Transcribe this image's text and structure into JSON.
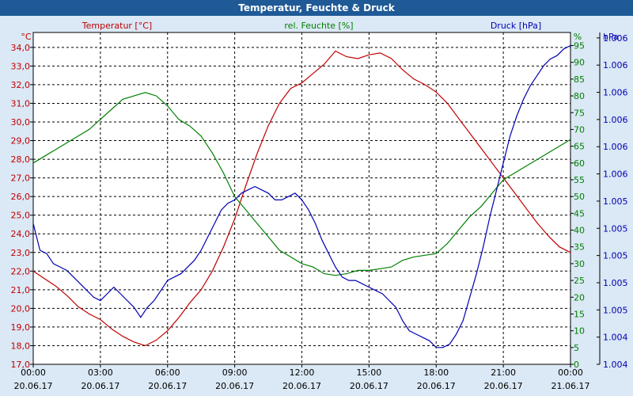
{
  "window": {
    "title": "Temperatur, Feuchte & Druck"
  },
  "colors": {
    "temperature": "#c00000",
    "humidity": "#008000",
    "pressure": "#0000b4",
    "background": "#dbe8f5",
    "plot_background": "#ffffff",
    "titlebar": "#1f5a96"
  },
  "chart_data": {
    "type": "line",
    "title": "Temperatur, Feuchte & Druck",
    "grid": true,
    "x_ticks": [
      {
        "time": "00:00",
        "date": "20.06.17"
      },
      {
        "time": "03:00",
        "date": "20.06.17"
      },
      {
        "time": "06:00",
        "date": "20.06.17"
      },
      {
        "time": "09:00",
        "date": "20.06.17"
      },
      {
        "time": "12:00",
        "date": "20.06.17"
      },
      {
        "time": "15:00",
        "date": "20.06.17"
      },
      {
        "time": "18:00",
        "date": "20.06.17"
      },
      {
        "time": "21:00",
        "date": "20.06.17"
      },
      {
        "time": "00:00",
        "date": "21.06.17"
      }
    ],
    "x_range_hours": [
      0,
      24
    ],
    "axes": {
      "temperature": {
        "label": "Temperatur [°C]",
        "unit": "°C",
        "ylim": [
          17,
          34.8
        ],
        "ticks": [
          "17,0",
          "18,0",
          "19,0",
          "20,0",
          "21,0",
          "22,0",
          "23,0",
          "24,0",
          "25,0",
          "26,0",
          "27,0",
          "28,0",
          "29,0",
          "30,0",
          "31,0",
          "32,0",
          "33,0",
          "34,0"
        ]
      },
      "humidity": {
        "label": "rel. Feuchte [%]",
        "unit": "%",
        "ylim": [
          0,
          98.9
        ],
        "ticks": [
          "0",
          "5",
          "10",
          "15",
          "20",
          "25",
          "30",
          "35",
          "40",
          "45",
          "50",
          "55",
          "60",
          "65",
          "70",
          "75",
          "80",
          "85",
          "90",
          "95"
        ]
      },
      "pressure": {
        "label": "Druck [hPa]",
        "unit": "hPa",
        "ticks": [
          "1.004",
          "1.004",
          "1.005",
          "1.005",
          "1.005",
          "1.005",
          "1.005",
          "1.006",
          "1.006",
          "1.006",
          "1.006",
          "1.006",
          "1.006"
        ]
      }
    },
    "series": [
      {
        "name": "Temperatur [°C]",
        "axis": "temperature",
        "points": [
          [
            0,
            22.0
          ],
          [
            0.5,
            21.6
          ],
          [
            1,
            21.2
          ],
          [
            1.5,
            20.7
          ],
          [
            2,
            20.1
          ],
          [
            2.5,
            19.7
          ],
          [
            3,
            19.4
          ],
          [
            3.5,
            18.9
          ],
          [
            4,
            18.5
          ],
          [
            4.5,
            18.2
          ],
          [
            5,
            18.0
          ],
          [
            5.5,
            18.3
          ],
          [
            6,
            18.8
          ],
          [
            6.5,
            19.5
          ],
          [
            7,
            20.3
          ],
          [
            7.5,
            21.0
          ],
          [
            8,
            22.0
          ],
          [
            8.5,
            23.3
          ],
          [
            9,
            24.8
          ],
          [
            9.5,
            26.6
          ],
          [
            10,
            28.3
          ],
          [
            10.5,
            29.8
          ],
          [
            11,
            31.0
          ],
          [
            11.5,
            31.8
          ],
          [
            12,
            32.1
          ],
          [
            12.5,
            32.6
          ],
          [
            13,
            33.1
          ],
          [
            13.5,
            33.8
          ],
          [
            14,
            33.5
          ],
          [
            14.5,
            33.4
          ],
          [
            15,
            33.6
          ],
          [
            15.5,
            33.7
          ],
          [
            16,
            33.4
          ],
          [
            16.5,
            32.8
          ],
          [
            17,
            32.3
          ],
          [
            17.5,
            32.0
          ],
          [
            18,
            31.6
          ],
          [
            18.5,
            31.0
          ],
          [
            19,
            30.2
          ],
          [
            19.5,
            29.4
          ],
          [
            20,
            28.6
          ],
          [
            20.5,
            27.8
          ],
          [
            21,
            27.0
          ],
          [
            21.5,
            26.2
          ],
          [
            22,
            25.4
          ],
          [
            22.5,
            24.6
          ],
          [
            23,
            23.9
          ],
          [
            23.5,
            23.3
          ],
          [
            24,
            23.0
          ]
        ]
      },
      {
        "name": "rel. Feuchte [%]",
        "axis": "humidity",
        "points": [
          [
            0,
            60
          ],
          [
            0.5,
            62
          ],
          [
            1,
            64
          ],
          [
            1.5,
            66
          ],
          [
            2,
            68
          ],
          [
            2.5,
            70
          ],
          [
            3,
            73
          ],
          [
            3.5,
            76
          ],
          [
            4,
            79
          ],
          [
            4.5,
            80
          ],
          [
            5,
            81
          ],
          [
            5.5,
            80
          ],
          [
            6,
            77
          ],
          [
            6.5,
            73
          ],
          [
            7,
            71
          ],
          [
            7.5,
            68
          ],
          [
            8,
            63
          ],
          [
            8.5,
            57
          ],
          [
            9,
            50
          ],
          [
            9.5,
            46
          ],
          [
            10,
            42
          ],
          [
            10.5,
            38
          ],
          [
            11,
            34
          ],
          [
            11.5,
            32
          ],
          [
            12,
            30
          ],
          [
            12.5,
            29
          ],
          [
            13,
            27
          ],
          [
            13.5,
            26.5
          ],
          [
            14,
            27
          ],
          [
            14.5,
            28
          ],
          [
            15,
            28
          ],
          [
            15.5,
            28.5
          ],
          [
            16,
            29
          ],
          [
            16.5,
            31
          ],
          [
            17,
            32
          ],
          [
            17.5,
            32.5
          ],
          [
            18,
            33
          ],
          [
            18.5,
            36
          ],
          [
            19,
            40
          ],
          [
            19.5,
            44
          ],
          [
            20,
            47
          ],
          [
            20.5,
            51
          ],
          [
            21,
            55
          ],
          [
            21.5,
            57
          ],
          [
            22,
            59
          ],
          [
            22.5,
            61
          ],
          [
            23,
            63
          ],
          [
            23.5,
            65
          ],
          [
            24,
            67
          ]
        ]
      },
      {
        "name": "Druck [hPa]",
        "axis": "pressure",
        "points": [
          [
            0,
            42
          ],
          [
            0.3,
            34
          ],
          [
            0.6,
            33
          ],
          [
            0.9,
            30
          ],
          [
            1.2,
            29
          ],
          [
            1.5,
            28
          ],
          [
            1.8,
            26
          ],
          [
            2.1,
            24
          ],
          [
            2.4,
            22
          ],
          [
            2.7,
            20
          ],
          [
            3,
            19
          ],
          [
            3.3,
            21
          ],
          [
            3.6,
            23
          ],
          [
            3.9,
            21
          ],
          [
            4.2,
            19
          ],
          [
            4.5,
            17
          ],
          [
            4.8,
            14
          ],
          [
            5.1,
            17
          ],
          [
            5.4,
            19
          ],
          [
            5.7,
            22
          ],
          [
            6,
            25
          ],
          [
            6.3,
            26
          ],
          [
            6.6,
            27
          ],
          [
            6.9,
            29
          ],
          [
            7.2,
            31
          ],
          [
            7.5,
            34
          ],
          [
            7.8,
            38
          ],
          [
            8.1,
            42
          ],
          [
            8.4,
            46
          ],
          [
            8.7,
            48
          ],
          [
            9,
            49
          ],
          [
            9.3,
            51
          ],
          [
            9.6,
            52
          ],
          [
            9.9,
            53
          ],
          [
            10.2,
            52
          ],
          [
            10.5,
            51
          ],
          [
            10.8,
            49
          ],
          [
            11.1,
            49
          ],
          [
            11.4,
            50
          ],
          [
            11.7,
            51
          ],
          [
            12,
            49
          ],
          [
            12.3,
            46
          ],
          [
            12.6,
            42
          ],
          [
            12.9,
            37
          ],
          [
            13.2,
            33
          ],
          [
            13.5,
            29
          ],
          [
            13.8,
            26
          ],
          [
            14.1,
            25
          ],
          [
            14.4,
            25
          ],
          [
            14.7,
            24
          ],
          [
            15,
            23
          ],
          [
            15.3,
            22
          ],
          [
            15.6,
            21
          ],
          [
            15.9,
            19
          ],
          [
            16.2,
            17
          ],
          [
            16.5,
            13
          ],
          [
            16.8,
            10
          ],
          [
            17.1,
            9
          ],
          [
            17.4,
            8
          ],
          [
            17.7,
            7
          ],
          [
            18,
            5
          ],
          [
            18.3,
            5
          ],
          [
            18.6,
            6
          ],
          [
            18.9,
            9
          ],
          [
            19.2,
            13
          ],
          [
            19.5,
            20
          ],
          [
            19.8,
            27
          ],
          [
            20.1,
            35
          ],
          [
            20.4,
            44
          ],
          [
            20.7,
            52
          ],
          [
            21,
            60
          ],
          [
            21.3,
            68
          ],
          [
            21.6,
            74
          ],
          [
            21.9,
            79
          ],
          [
            22.2,
            83
          ],
          [
            22.5,
            86
          ],
          [
            22.8,
            89
          ],
          [
            23.1,
            91
          ],
          [
            23.4,
            92
          ],
          [
            23.7,
            94
          ],
          [
            24,
            95
          ]
        ]
      }
    ]
  }
}
